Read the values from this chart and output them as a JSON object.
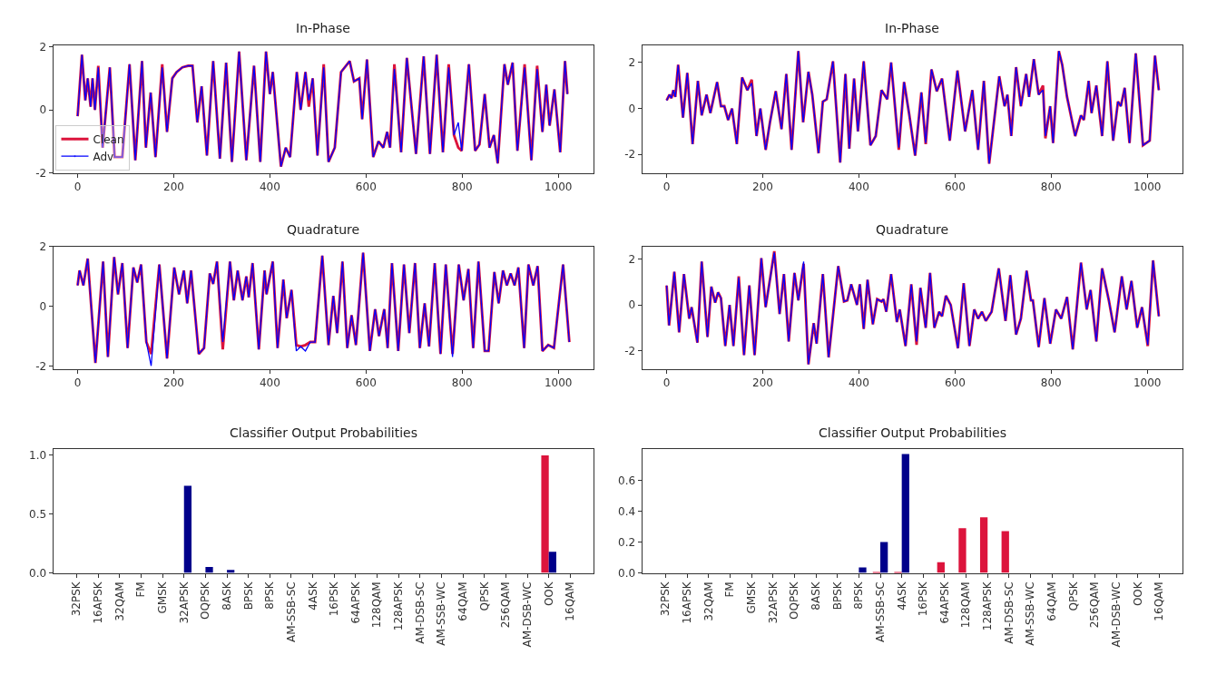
{
  "chart_data": [
    {
      "type": "line",
      "title": "In-Phase",
      "legend": "bottom left",
      "xlim": [
        -51,
        1074
      ],
      "xticks": [
        0,
        200,
        400,
        600,
        800,
        1000
      ],
      "ylim": [
        -2,
        2.05
      ],
      "yticks": [
        -2,
        0,
        2
      ],
      "x": [
        0,
        9,
        16,
        21,
        27,
        31,
        36,
        43,
        52,
        67,
        77,
        93,
        108,
        120,
        134,
        142,
        152,
        162,
        176,
        186,
        197,
        206,
        218,
        230,
        239,
        249,
        258,
        269,
        282,
        296,
        309,
        321,
        336,
        351,
        367,
        380,
        392,
        400,
        406,
        423,
        433,
        442,
        456,
        464,
        474,
        481,
        489,
        499,
        512,
        522,
        535,
        548,
        566,
        575,
        586,
        592,
        602,
        615,
        626,
        636,
        644,
        650,
        659,
        673,
        685,
        704,
        720,
        733,
        747,
        760,
        772,
        783,
        792,
        799,
        814,
        827,
        836,
        847,
        857,
        866,
        874,
        888,
        895,
        905,
        915,
        930,
        944,
        956,
        967,
        975,
        982,
        992,
        1004,
        1014,
        1019
      ],
      "series": [
        {
          "name": "Clean",
          "color": "#dc143c",
          "values": [
            -0.2,
            1.75,
            0.3,
            1.0,
            0.1,
            1.0,
            0,
            1.4,
            -1.2,
            1.35,
            -1.5,
            -1.5,
            1.45,
            -1.6,
            1.55,
            -1.2,
            0.55,
            -1.5,
            1.45,
            -0.7,
            1.0,
            1.2,
            1.35,
            1.4,
            1.4,
            -0.4,
            0.75,
            -1.45,
            1.55,
            -1.55,
            1.5,
            -1.65,
            1.85,
            -1.6,
            1.4,
            -1.65,
            1.85,
            0.5,
            1.2,
            -1.8,
            -1.2,
            -1.5,
            1.2,
            0.0,
            1.2,
            0.1,
            1.0,
            -1.45,
            1.45,
            -1.65,
            -1.2,
            1.2,
            1.55,
            0.9,
            1.0,
            -0.3,
            1.6,
            -1.5,
            -1.0,
            -1.2,
            -0.7,
            -1.2,
            1.45,
            -1.35,
            1.65,
            -1.4,
            1.7,
            -1.4,
            1.75,
            -1.35,
            1.45,
            -0.8,
            -1.2,
            -1.3,
            1.45,
            -1.3,
            -1.1,
            0.5,
            -1.2,
            -0.8,
            -1.7,
            1.45,
            0.8,
            1.5,
            -1.3,
            1.45,
            -1.6,
            1.4,
            -0.7,
            0.8,
            -0.5,
            0.65,
            -1.35,
            1.55,
            0.5
          ]
        },
        {
          "name": "Adv",
          "color": "#0000ff",
          "values": [
            -0.2,
            1.75,
            0.3,
            1.0,
            0.1,
            1.0,
            0,
            1.35,
            -1.2,
            1.35,
            -1.5,
            -1.5,
            1.45,
            -1.6,
            1.55,
            -1.2,
            0.55,
            -1.5,
            1.35,
            -0.7,
            1.0,
            1.2,
            1.35,
            1.4,
            1.4,
            -0.4,
            0.75,
            -1.45,
            1.55,
            -1.55,
            1.5,
            -1.65,
            1.85,
            -1.6,
            1.4,
            -1.65,
            1.85,
            0.5,
            1.2,
            -1.8,
            -1.2,
            -1.5,
            1.2,
            0.0,
            1.2,
            0.3,
            1.0,
            -1.45,
            1.35,
            -1.65,
            -1.2,
            1.2,
            1.55,
            0.9,
            1.0,
            -0.3,
            1.6,
            -1.5,
            -1.0,
            -1.2,
            -0.7,
            -1.2,
            1.3,
            -1.35,
            1.65,
            -1.4,
            1.7,
            -1.4,
            1.75,
            -1.35,
            1.35,
            -0.8,
            -0.4,
            -1.3,
            1.45,
            -1.3,
            -1.1,
            0.5,
            -1.2,
            -0.8,
            -1.7,
            1.45,
            0.8,
            1.5,
            -1.3,
            1.35,
            -1.6,
            1.3,
            -0.7,
            0.8,
            -0.5,
            0.65,
            -1.35,
            1.55,
            0.5
          ]
        }
      ]
    },
    {
      "type": "line",
      "title": "In-Phase",
      "xlim": [
        -51,
        1074
      ],
      "xticks": [
        0,
        200,
        400,
        600,
        800,
        1000
      ],
      "ylim": [
        -2.8,
        2.75
      ],
      "yticks": [
        -2,
        0,
        2
      ],
      "x": [
        0,
        6,
        10,
        14,
        18,
        24,
        34,
        43,
        54,
        65,
        73,
        83,
        91,
        105,
        113,
        120,
        128,
        136,
        146,
        157,
        168,
        177,
        187,
        195,
        206,
        215,
        227,
        239,
        249,
        260,
        274,
        284,
        295,
        303,
        316,
        325,
        333,
        346,
        361,
        372,
        380,
        390,
        398,
        410,
        424,
        435,
        447,
        459,
        467,
        483,
        494,
        505,
        517,
        530,
        539,
        551,
        562,
        573,
        589,
        605,
        621,
        636,
        648,
        660,
        671,
        692,
        703,
        709,
        717,
        727,
        737,
        748,
        754,
        764,
        774,
        783,
        788,
        798,
        804,
        816,
        823,
        833,
        850,
        862,
        868,
        878,
        884,
        894,
        906,
        917,
        929,
        939,
        945,
        953,
        963,
        976,
        991,
        1005,
        1016,
        1024
      ],
      "series": [
        {
          "color": "#dc143c",
          "values": [
            0.35,
            0.6,
            0.45,
            0.8,
            0.5,
            1.9,
            -0.4,
            1.55,
            -1.55,
            1.2,
            -0.3,
            0.6,
            -0.2,
            1.15,
            0.1,
            0.1,
            -0.5,
            0,
            -1.55,
            1.35,
            0.8,
            1.25,
            -1.2,
            0,
            -1.8,
            -0.6,
            0.75,
            -0.9,
            1.5,
            -1.8,
            2.5,
            -0.6,
            1.6,
            0.6,
            -1.95,
            0.3,
            0.4,
            2.05,
            -2.35,
            1.5,
            -1.75,
            1.3,
            -1.0,
            2.05,
            -1.6,
            -1.2,
            0.8,
            0.4,
            2.0,
            -1.8,
            1.15,
            -0.3,
            -2.05,
            0.7,
            -1.55,
            1.7,
            0.75,
            1.3,
            -1.4,
            1.65,
            -1.0,
            0.8,
            -1.8,
            1.2,
            -2.4,
            1.4,
            0.1,
            0.6,
            -1.2,
            1.8,
            0.1,
            1.5,
            0.5,
            2.15,
            0.6,
            1.0,
            -1.3,
            0.1,
            -1.5,
            2.5,
            1.9,
            0.5,
            -1.2,
            -0.3,
            -0.5,
            1.2,
            -0.2,
            1.0,
            -1.2,
            2.05,
            -1.4,
            0.3,
            0.1,
            0.9,
            -1.5,
            2.4,
            -1.6,
            -1.4,
            2.3,
            0.8
          ]
        },
        {
          "color": "#0000ff",
          "values": [
            0.35,
            0.6,
            0.45,
            0.8,
            0.5,
            1.9,
            -0.4,
            1.55,
            -1.55,
            1.2,
            -0.3,
            0.6,
            -0.2,
            1.15,
            0.1,
            0.1,
            -0.5,
            0,
            -1.55,
            1.35,
            0.8,
            1.1,
            -1.2,
            0,
            -1.8,
            -0.6,
            0.75,
            -0.9,
            1.5,
            -1.8,
            2.5,
            -0.6,
            1.6,
            0.6,
            -1.95,
            0.3,
            0.4,
            2.05,
            -2.35,
            1.5,
            -1.75,
            1.3,
            -1.0,
            2.05,
            -1.6,
            -1.2,
            0.8,
            0.4,
            2.0,
            -1.7,
            1.15,
            -0.3,
            -2.05,
            0.7,
            -1.5,
            1.7,
            0.75,
            1.3,
            -1.4,
            1.65,
            -1.0,
            0.8,
            -1.8,
            1.2,
            -2.4,
            1.4,
            0.1,
            0.6,
            -1.2,
            1.8,
            0.1,
            1.5,
            0.5,
            2.15,
            0.6,
            0.8,
            -1.2,
            0.1,
            -1.5,
            2.5,
            1.9,
            0.5,
            -1.2,
            -0.3,
            -0.5,
            1.2,
            -0.2,
            1.0,
            -1.2,
            2.05,
            -1.4,
            0.3,
            0.1,
            0.9,
            -1.5,
            2.4,
            -1.6,
            -1.4,
            2.3,
            0.8
          ]
        }
      ]
    },
    {
      "type": "line",
      "title": "Quadrature",
      "xlim": [
        -51,
        1074
      ],
      "xticks": [
        0,
        200,
        400,
        600,
        800,
        1000
      ],
      "ylim": [
        -2.1,
        2.0
      ],
      "yticks": [
        -2,
        0,
        2
      ],
      "x": [
        0,
        4,
        12,
        21,
        37,
        53,
        63,
        76,
        84,
        93,
        104,
        116,
        124,
        132,
        143,
        153,
        170,
        186,
        201,
        211,
        221,
        228,
        236,
        252,
        263,
        275,
        282,
        290,
        302,
        317,
        325,
        333,
        343,
        351,
        356,
        364,
        377,
        389,
        393,
        406,
        416,
        428,
        435,
        445,
        455,
        464,
        474,
        484,
        494,
        509,
        522,
        532,
        540,
        551,
        561,
        570,
        579,
        594,
        608,
        619,
        627,
        638,
        645,
        654,
        667,
        679,
        690,
        702,
        712,
        722,
        731,
        743,
        755,
        766,
        780,
        793,
        803,
        813,
        823,
        834,
        847,
        855,
        867,
        876,
        885,
        893,
        901,
        909,
        917,
        929,
        938,
        948,
        957,
        967,
        979,
        991,
        1010,
        1023
      ],
      "series": [
        {
          "color": "#dc143c",
          "values": [
            0.7,
            1.2,
            0.7,
            1.6,
            -1.9,
            1.5,
            -1.7,
            1.65,
            0.4,
            1.45,
            -1.4,
            1.3,
            0.8,
            1.4,
            -1.2,
            -1.6,
            1.4,
            -1.75,
            1.3,
            0.4,
            1.2,
            0.1,
            1.2,
            -1.6,
            -1.4,
            1.1,
            0.75,
            1.5,
            -1.45,
            1.5,
            0.2,
            1.2,
            0.2,
            1.0,
            0.3,
            1.45,
            -1.45,
            1.2,
            0.4,
            1.5,
            -1.4,
            0.9,
            -0.4,
            0.55,
            -1.3,
            -1.35,
            -1.3,
            -1.2,
            -1.2,
            1.7,
            -1.3,
            0.35,
            -0.9,
            1.5,
            -1.4,
            -0.3,
            -1.3,
            1.8,
            -1.5,
            -0.1,
            -1.0,
            -0.1,
            -1.4,
            1.45,
            -1.5,
            1.4,
            -0.9,
            1.45,
            -1.4,
            0.1,
            -1.35,
            1.45,
            -1.6,
            1.4,
            -1.6,
            1.4,
            0.2,
            1.25,
            -1.4,
            1.5,
            -1.5,
            -1.5,
            1.15,
            0.1,
            1.2,
            0.7,
            1.1,
            0.7,
            1.3,
            -1.4,
            1.4,
            0.7,
            1.35,
            -1.5,
            -1.3,
            -1.4,
            1.4,
            -1.2
          ]
        },
        {
          "color": "#0000ff",
          "values": [
            0.7,
            1.2,
            0.7,
            1.6,
            -1.9,
            1.5,
            -1.7,
            1.65,
            0.4,
            1.45,
            -1.4,
            1.3,
            0.8,
            1.4,
            -1.2,
            -2.0,
            1.4,
            -1.75,
            1.3,
            0.4,
            1.2,
            0.1,
            1.2,
            -1.6,
            -1.4,
            1.1,
            0.75,
            1.5,
            -1.2,
            1.5,
            0.2,
            1.2,
            0.2,
            1.0,
            0.3,
            1.45,
            -1.45,
            1.2,
            0.4,
            1.5,
            -1.4,
            0.9,
            -0.4,
            0.55,
            -1.5,
            -1.35,
            -1.5,
            -1.2,
            -1.2,
            1.7,
            -1.3,
            0.35,
            -0.9,
            1.5,
            -1.4,
            -0.3,
            -1.3,
            1.8,
            -1.5,
            -0.1,
            -1.0,
            -0.1,
            -1.4,
            1.45,
            -1.5,
            1.4,
            -0.9,
            1.45,
            -1.4,
            0.1,
            -1.35,
            1.45,
            -1.6,
            1.4,
            -1.7,
            1.4,
            0.2,
            1.25,
            -1.4,
            1.5,
            -1.5,
            -1.5,
            1.15,
            0.1,
            1.2,
            0.7,
            1.1,
            0.7,
            1.3,
            -1.4,
            1.4,
            0.7,
            1.35,
            -1.5,
            -1.3,
            -1.4,
            1.4,
            -1.2
          ]
        }
      ]
    },
    {
      "type": "line",
      "title": "Quadrature",
      "xlim": [
        -51,
        1074
      ],
      "xticks": [
        0,
        200,
        400,
        600,
        800,
        1000
      ],
      "ylim": [
        -2.8,
        2.55
      ],
      "yticks": [
        -2,
        0,
        2
      ],
      "x": [
        0,
        5,
        16,
        26,
        36,
        47,
        52,
        64,
        73,
        85,
        93,
        101,
        107,
        113,
        122,
        131,
        139,
        150,
        161,
        172,
        183,
        197,
        206,
        224,
        235,
        244,
        254,
        266,
        274,
        285,
        295,
        306,
        312,
        325,
        337,
        357,
        369,
        376,
        384,
        396,
        402,
        410,
        418,
        429,
        438,
        447,
        451,
        457,
        467,
        479,
        485,
        497,
        509,
        520,
        528,
        539,
        548,
        557,
        567,
        573,
        581,
        591,
        606,
        618,
        630,
        640,
        648,
        656,
        664,
        676,
        691,
        705,
        715,
        727,
        737,
        749,
        758,
        762,
        774,
        786,
        798,
        810,
        821,
        833,
        845,
        862,
        874,
        882,
        894,
        906,
        920,
        932,
        947,
        957,
        967,
        979,
        989,
        1001,
        1012,
        1024
      ],
      "series": [
        {
          "color": "#dc143c",
          "values": [
            0.85,
            -0.9,
            1.45,
            -1.2,
            1.35,
            -0.6,
            -0.1,
            -1.65,
            1.9,
            -1.4,
            0.8,
            0.1,
            0.55,
            0.3,
            -1.8,
            0,
            -1.8,
            1.25,
            -2.2,
            0.85,
            -2.2,
            2.05,
            -0.1,
            2.35,
            -0.4,
            1.35,
            -1.6,
            1.4,
            0.2,
            1.8,
            -2.6,
            -0.8,
            -1.7,
            1.35,
            -2.3,
            1.7,
            0.15,
            0.2,
            0.9,
            0.0,
            0.9,
            -1.05,
            1.1,
            -0.85,
            0.25,
            0.15,
            0.25,
            -0.3,
            1.35,
            -0.75,
            -0.2,
            -1.8,
            0.9,
            -1.75,
            0.75,
            -1.0,
            1.4,
            -1.0,
            -0.3,
            -0.5,
            0.4,
            0,
            -1.9,
            0.95,
            -1.8,
            -0.2,
            -0.6,
            -0.3,
            -0.7,
            -0.3,
            1.6,
            -0.7,
            1.3,
            -1.3,
            -0.6,
            1.5,
            0.2,
            0.2,
            -1.85,
            0.3,
            -1.7,
            -0.2,
            -0.6,
            0.35,
            -1.95,
            1.85,
            -0.2,
            0.65,
            -1.6,
            1.6,
            0.2,
            -1.2,
            1.25,
            -0.2,
            1.05,
            -1.0,
            -0.1,
            -1.8,
            1.95,
            -0.5
          ]
        },
        {
          "color": "#0000ff",
          "values": [
            0.85,
            -0.9,
            1.45,
            -1.2,
            1.35,
            -0.6,
            -0.1,
            -1.65,
            1.9,
            -1.4,
            0.8,
            0.1,
            0.55,
            0.3,
            -1.8,
            0,
            -1.8,
            1.2,
            -2.2,
            0.85,
            -2.2,
            2.05,
            -0.1,
            2.3,
            -0.4,
            1.35,
            -1.6,
            1.4,
            0.2,
            1.9,
            -2.6,
            -0.8,
            -1.7,
            1.35,
            -2.3,
            1.7,
            0.15,
            0.2,
            0.9,
            0.0,
            0.9,
            -1.05,
            1.1,
            -0.85,
            0.25,
            0.15,
            0.25,
            -0.3,
            1.35,
            -0.75,
            -0.2,
            -1.8,
            0.9,
            -1.6,
            0.75,
            -1.0,
            1.4,
            -1.0,
            -0.3,
            -0.5,
            0.4,
            0,
            -1.9,
            0.95,
            -1.8,
            -0.2,
            -0.6,
            -0.3,
            -0.7,
            -0.3,
            1.6,
            -0.7,
            1.3,
            -1.3,
            -0.6,
            1.5,
            0.2,
            0.2,
            -1.85,
            0.3,
            -1.7,
            -0.2,
            -0.6,
            0.35,
            -1.95,
            1.85,
            -0.2,
            0.65,
            -1.6,
            1.6,
            0.2,
            -1.2,
            1.25,
            -0.2,
            1.05,
            -1.0,
            -0.1,
            -1.75,
            1.95,
            -0.5
          ]
        }
      ]
    },
    {
      "type": "bar",
      "title": "Classifier Output Probabilities",
      "ylim": [
        0,
        1.05
      ],
      "yticks": [
        {
          "value": 0,
          "label": "0.0"
        },
        {
          "value": 0.5,
          "label": "0.5"
        },
        {
          "value": 1,
          "label": "1.0"
        }
      ],
      "categories": [
        "32PSK",
        "16APSK",
        "32QAM",
        "FM",
        "GMSK",
        "32APSK",
        "OQPSK",
        "8ASK",
        "BPSK",
        "8PSK",
        "AM-SSB-SC",
        "4ASK",
        "16PSK",
        "64APSK",
        "128QAM",
        "128APSK",
        "AM-DSB-SC",
        "AM-SSB-WC",
        "64QAM",
        "QPSK",
        "256QAM",
        "AM-DSB-WC",
        "OOK",
        "16QAM"
      ],
      "series": [
        {
          "color": "#dc143c",
          "values": [
            0,
            0,
            0,
            0,
            0,
            0,
            0,
            0,
            0,
            0,
            0,
            0,
            0,
            0,
            0,
            0,
            0,
            0,
            0,
            0,
            0,
            0,
            1.0,
            0
          ]
        },
        {
          "color": "#00008b",
          "values": [
            0,
            0,
            0,
            0,
            0,
            0.74,
            0.05,
            0.025,
            0,
            0,
            0,
            0,
            0,
            0,
            0,
            0,
            0,
            0,
            0,
            0,
            0,
            0,
            0.18,
            0
          ]
        }
      ]
    },
    {
      "type": "bar",
      "title": "Classifier Output Probabilities",
      "ylim": [
        0,
        0.8
      ],
      "yticks": [
        {
          "value": 0,
          "label": "0.0"
        },
        {
          "value": 0.2,
          "label": "0.2"
        },
        {
          "value": 0.4,
          "label": "0.4"
        },
        {
          "value": 0.6,
          "label": "0.6"
        }
      ],
      "categories": [
        "32PSK",
        "16APSK",
        "32QAM",
        "FM",
        "GMSK",
        "32APSK",
        "OQPSK",
        "8ASK",
        "BPSK",
        "8PSK",
        "AM-SSB-SC",
        "4ASK",
        "16PSK",
        "64APSK",
        "128QAM",
        "128APSK",
        "AM-DSB-SC",
        "AM-SSB-WC",
        "64QAM",
        "QPSK",
        "256QAM",
        "AM-DSB-WC",
        "OOK",
        "16QAM"
      ],
      "series": [
        {
          "color": "#dc143c",
          "values": [
            0,
            0,
            0,
            0,
            0,
            0,
            0,
            0,
            0,
            0,
            0.005,
            0.005,
            0,
            0.07,
            0.29,
            0.36,
            0.27,
            0,
            0,
            0,
            0,
            0,
            0,
            0
          ]
        },
        {
          "color": "#00008b",
          "values": [
            0,
            0,
            0,
            0,
            0,
            0,
            0,
            0,
            0,
            0.035,
            0.2,
            0.77,
            0,
            0,
            0,
            0,
            0,
            0,
            0,
            0,
            0,
            0,
            0,
            0
          ]
        }
      ]
    }
  ]
}
